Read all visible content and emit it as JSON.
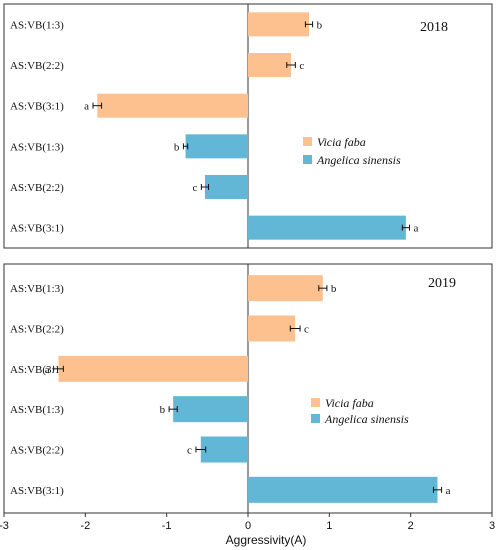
{
  "xlabel": "Aggressivity(A)",
  "xlim": [
    -3,
    3
  ],
  "xticks": [
    "-3",
    "-2",
    "-1",
    "0",
    "1",
    "2",
    "3"
  ],
  "colors": {
    "vicia": "#FDC08F",
    "angelica": "#62B6D6"
  },
  "chart_data": [
    {
      "type": "bar",
      "title": "2018",
      "orientation": "horizontal",
      "categories": [
        "AS:VB(1:3)",
        "AS:VB(2:2)",
        "AS:VB(3:1)",
        "AS:VB(1:3)",
        "AS:VB(2:2)",
        "AS:VB(3:1)"
      ],
      "values": [
        0.85,
        0.6,
        -2.1,
        -0.87,
        -0.6,
        2.2
      ],
      "errors": [
        0.05,
        0.06,
        0.06,
        0.03,
        0.05,
        0.05
      ],
      "species": [
        "vicia",
        "vicia",
        "vicia",
        "angelica",
        "angelica",
        "angelica"
      ],
      "sig": [
        "b",
        "c",
        "a",
        "b",
        "c",
        "a"
      ],
      "legend": [
        "Vicia faba",
        "Angelica sinensis"
      ],
      "xlim": [
        -3.4,
        3.4
      ],
      "xlabel": "",
      "ylabel": ""
    },
    {
      "type": "bar",
      "title": "2019",
      "orientation": "horizontal",
      "categories": [
        "AS:VB(1:3)",
        "AS:VB(2:2)",
        "AS:VB(3:1)",
        "AS:VB(1:3)",
        "AS:VB(2:2)",
        "AS:VB(3:1)"
      ],
      "values": [
        0.92,
        0.58,
        -2.33,
        -0.92,
        -0.58,
        2.33
      ],
      "errors": [
        0.05,
        0.06,
        0.06,
        0.05,
        0.06,
        0.05
      ],
      "species": [
        "vicia",
        "vicia",
        "vicia",
        "angelica",
        "angelica",
        "angelica"
      ],
      "sig": [
        "b",
        "c",
        "a",
        "b",
        "c",
        "a"
      ],
      "legend": [
        "Vicia faba",
        "Angelica sinensis"
      ],
      "xlim": [
        -3,
        3
      ],
      "xlabel": "Aggressivity(A)",
      "ylabel": ""
    }
  ]
}
